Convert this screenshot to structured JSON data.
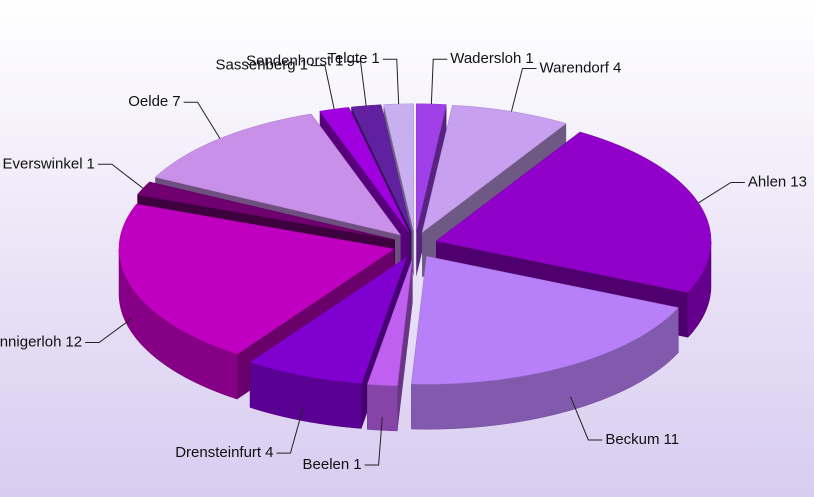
{
  "chart_data": {
    "type": "pie3d",
    "categories": [
      "Wadersloh",
      "Warendorf",
      "Ahlen",
      "Beckum",
      "Beelen",
      "Drensteinfurt",
      "Ennigerloh",
      "Everswinkel",
      "Oelde",
      "Sassenberg",
      "Sendenhorst",
      "Telgte"
    ],
    "values": [
      1,
      4,
      13,
      11,
      1,
      4,
      12,
      1,
      7,
      1,
      1,
      1
    ],
    "colors": [
      "#a040e8",
      "#c8a0f0",
      "#9000c8",
      "#b880f8",
      "#c060f0",
      "#8000d0",
      "#c000c0",
      "#700070",
      "#c890e8",
      "#a000e0",
      "#6020a0",
      "#c8b0f0"
    ]
  }
}
